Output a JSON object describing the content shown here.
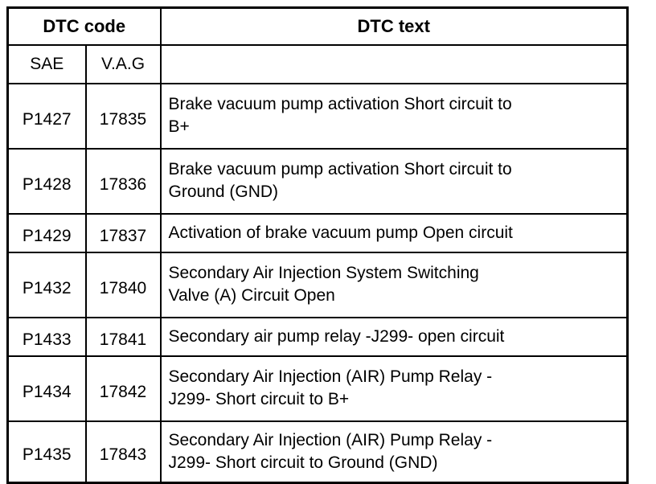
{
  "table": {
    "header": {
      "dtc_code": "DTC code",
      "dtc_text": "DTC text",
      "sae": "SAE",
      "vag": "V.A.G"
    },
    "rows": [
      {
        "sae": "P1427",
        "vag": "17835",
        "text": "Brake vacuum pump activation Short circuit to\nB+"
      },
      {
        "sae": "P1428",
        "vag": "17836",
        "text": "Brake vacuum pump activation Short circuit to\nGround (GND)"
      },
      {
        "sae": "P1429",
        "vag": "17837",
        "text": "Activation of brake vacuum pump Open circuit"
      },
      {
        "sae": "P1432",
        "vag": "17840",
        "text": "Secondary Air Injection System Switching\nValve (A) Circuit Open"
      },
      {
        "sae": "P1433",
        "vag": "17841",
        "text": "Secondary air pump relay -J299- open circuit"
      },
      {
        "sae": "P1434",
        "vag": "17842",
        "text": "Secondary Air Injection (AIR) Pump Relay -\nJ299- Short circuit to B+"
      },
      {
        "sae": "P1435",
        "vag": "17843",
        "text": "Secondary Air Injection (AIR) Pump Relay -\nJ299- Short circuit to Ground (GND)"
      }
    ]
  },
  "colors": {
    "border": "#000000",
    "background": "#ffffff",
    "text": "#000000"
  }
}
